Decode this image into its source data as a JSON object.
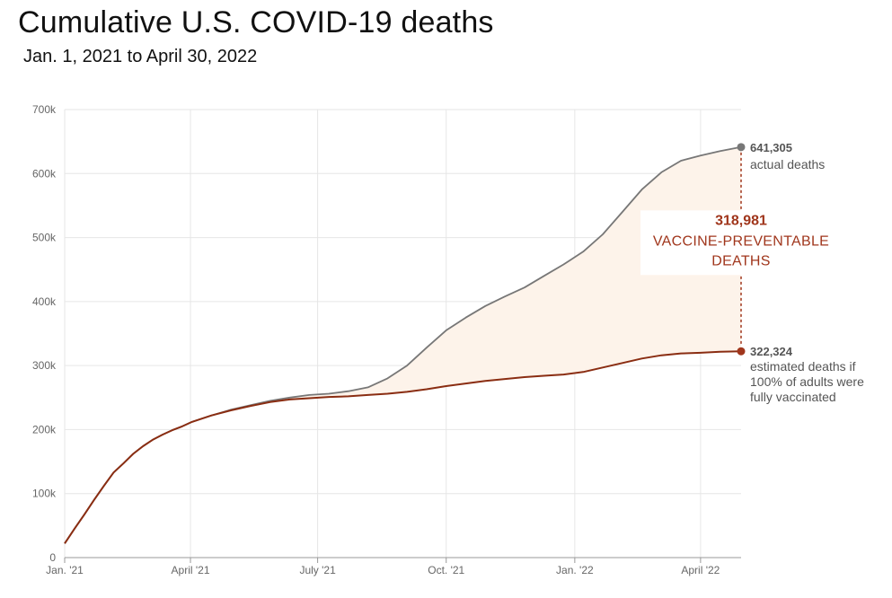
{
  "chart_data": {
    "type": "line",
    "title": "Cumulative U.S. COVID-19 deaths",
    "subtitle": "Jan. 1, 2021 to April 30, 2022",
    "xlabel": "",
    "ylabel": "",
    "ylim": [
      0,
      700000
    ],
    "y_ticks": [
      0,
      100000,
      200000,
      300000,
      400000,
      500000,
      600000,
      700000
    ],
    "y_tick_labels": [
      "0",
      "100k",
      "200k",
      "300k",
      "400k",
      "500k",
      "600k",
      "700k"
    ],
    "x_range": [
      "2021-01-01",
      "2022-04-30"
    ],
    "x_ticks": [
      "2021-01-01",
      "2021-04-01",
      "2021-07-01",
      "2021-10-01",
      "2022-01-01",
      "2022-04-01"
    ],
    "x_tick_labels": [
      "Jan. '21",
      "April '21",
      "July '21",
      "Oct. '21",
      "Jan. '22",
      "April '22"
    ],
    "grid": true,
    "colors": {
      "actual": "#777777",
      "estimated": "#8a2d12",
      "gap_fill": "#fdf3ea",
      "gap_text": "#a0361c",
      "grid": "#e6e6e6"
    },
    "series": [
      {
        "name": "actual deaths",
        "color": "#777777",
        "points": [
          [
            "2021-01-01",
            22000
          ],
          [
            "2021-01-08",
            45000
          ],
          [
            "2021-01-15",
            67000
          ],
          [
            "2021-01-22",
            90000
          ],
          [
            "2021-01-29",
            112000
          ],
          [
            "2021-02-05",
            133000
          ],
          [
            "2021-02-12",
            147000
          ],
          [
            "2021-02-19",
            162000
          ],
          [
            "2021-02-26",
            174000
          ],
          [
            "2021-03-05",
            184000
          ],
          [
            "2021-03-12",
            192000
          ],
          [
            "2021-03-19",
            199000
          ],
          [
            "2021-03-26",
            205000
          ],
          [
            "2021-04-02",
            212000
          ],
          [
            "2021-04-16",
            222000
          ],
          [
            "2021-04-30",
            231000
          ],
          [
            "2021-05-14",
            238000
          ],
          [
            "2021-05-28",
            245000
          ],
          [
            "2021-06-11",
            250000
          ],
          [
            "2021-06-25",
            254000
          ],
          [
            "2021-07-09",
            256000
          ],
          [
            "2021-07-23",
            260000
          ],
          [
            "2021-08-06",
            266000
          ],
          [
            "2021-08-20",
            280000
          ],
          [
            "2021-09-03",
            300000
          ],
          [
            "2021-09-17",
            328000
          ],
          [
            "2021-10-01",
            355000
          ],
          [
            "2021-10-15",
            375000
          ],
          [
            "2021-10-29",
            393000
          ],
          [
            "2021-11-12",
            408000
          ],
          [
            "2021-11-26",
            422000
          ],
          [
            "2021-12-10",
            440000
          ],
          [
            "2021-12-24",
            458000
          ],
          [
            "2022-01-07",
            478000
          ],
          [
            "2022-01-21",
            505000
          ],
          [
            "2022-02-04",
            540000
          ],
          [
            "2022-02-18",
            575000
          ],
          [
            "2022-03-04",
            602000
          ],
          [
            "2022-03-18",
            620000
          ],
          [
            "2022-04-01",
            628000
          ],
          [
            "2022-04-15",
            635000
          ],
          [
            "2022-04-30",
            641305
          ]
        ]
      },
      {
        "name": "estimated deaths if 100% of adults were fully vaccinated",
        "color": "#8a2d12",
        "points": [
          [
            "2021-01-01",
            22000
          ],
          [
            "2021-01-08",
            45000
          ],
          [
            "2021-01-15",
            67000
          ],
          [
            "2021-01-22",
            90000
          ],
          [
            "2021-01-29",
            112000
          ],
          [
            "2021-02-05",
            133000
          ],
          [
            "2021-02-12",
            147000
          ],
          [
            "2021-02-19",
            162000
          ],
          [
            "2021-02-26",
            174000
          ],
          [
            "2021-03-05",
            184000
          ],
          [
            "2021-03-12",
            192000
          ],
          [
            "2021-03-19",
            199000
          ],
          [
            "2021-03-26",
            205000
          ],
          [
            "2021-04-02",
            212000
          ],
          [
            "2021-04-16",
            222000
          ],
          [
            "2021-04-30",
            230000
          ],
          [
            "2021-05-14",
            237000
          ],
          [
            "2021-05-28",
            243000
          ],
          [
            "2021-06-11",
            247000
          ],
          [
            "2021-06-25",
            249000
          ],
          [
            "2021-07-09",
            251000
          ],
          [
            "2021-07-23",
            252000
          ],
          [
            "2021-08-06",
            254000
          ],
          [
            "2021-08-20",
            256000
          ],
          [
            "2021-09-03",
            259000
          ],
          [
            "2021-09-17",
            263000
          ],
          [
            "2021-10-01",
            268000
          ],
          [
            "2021-10-15",
            272000
          ],
          [
            "2021-10-29",
            276000
          ],
          [
            "2021-11-12",
            279000
          ],
          [
            "2021-11-26",
            282000
          ],
          [
            "2021-12-10",
            284000
          ],
          [
            "2021-12-24",
            286000
          ],
          [
            "2022-01-07",
            290000
          ],
          [
            "2022-01-21",
            297000
          ],
          [
            "2022-02-04",
            304000
          ],
          [
            "2022-02-18",
            311000
          ],
          [
            "2022-03-04",
            316000
          ],
          [
            "2022-03-18",
            319000
          ],
          [
            "2022-04-01",
            320000
          ],
          [
            "2022-04-15",
            321500
          ],
          [
            "2022-04-30",
            322324
          ]
        ]
      }
    ],
    "annotations": {
      "actual_value": "641,305",
      "actual_label": "actual deaths",
      "estimated_value": "322,324",
      "estimated_label_lines": [
        "estimated deaths if",
        "100% of adults were",
        "fully vaccinated"
      ],
      "gap_value": "318,981",
      "gap_label_lines": [
        "VACCINE-PREVENTABLE",
        "DEATHS"
      ]
    }
  }
}
